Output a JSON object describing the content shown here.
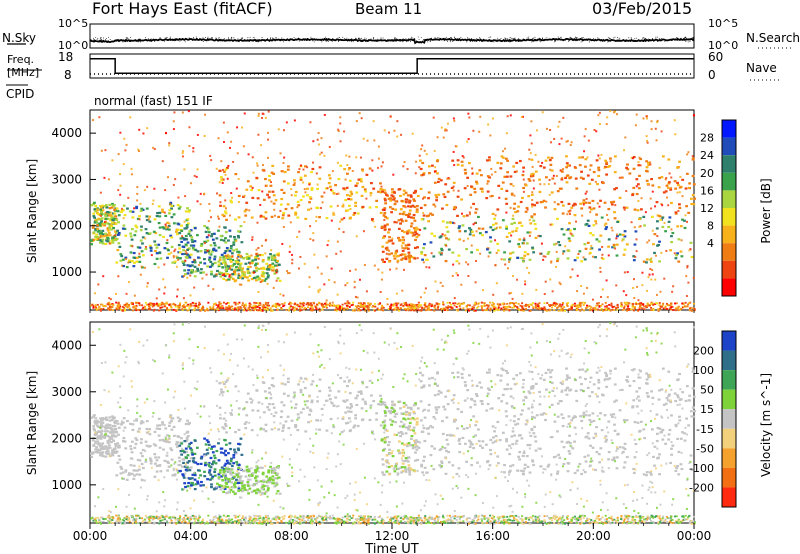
{
  "header": {
    "station": "Fort Hays East (fitACF)",
    "beam": "Beam 11",
    "date": "03/Feb/2015"
  },
  "noise_panel": {
    "left_label": "N.Sky",
    "right_label": "N.Search",
    "ticks": [
      "10^5",
      "10^0"
    ],
    "right_ticks": [
      "10^5",
      "10^0"
    ]
  },
  "freq_panel": {
    "left_label_1": "Freq.",
    "left_label_2": "[MHz]",
    "left_ticks": [
      "18",
      "8"
    ],
    "right_label": "Nave",
    "right_ticks": [
      "60",
      "0"
    ],
    "cpid_label": "CPID",
    "mode_text": "normal (fast) 151 IF"
  },
  "power_panel": {
    "ylabel": "Slant Range [km]",
    "yticks": [
      "4000",
      "3000",
      "2000",
      "1000"
    ],
    "colorbar_label": "Power [dB]",
    "colorbar_ticks": [
      "28",
      "24",
      "20",
      "16",
      "12",
      "8",
      "4"
    ],
    "colors": [
      "#0018ff",
      "#1f4cb8",
      "#2f7f6d",
      "#39a24b",
      "#a9d640",
      "#f2e11f",
      "#f7b21b",
      "#f07d14",
      "#ee4412",
      "#ff0000"
    ]
  },
  "velocity_panel": {
    "ylabel": "Slant Range [km]",
    "yticks": [
      "4000",
      "3000",
      "2000",
      "1000"
    ],
    "colorbar_label": "Velocity [m s^-1]",
    "colorbar_ticks": [
      "200",
      "100",
      "50",
      "15",
      "-15",
      "-50",
      "-100",
      "-200"
    ],
    "colors": [
      "#1d43c9",
      "#2f6f8a",
      "#3fa556",
      "#7ed33a",
      "#c4c4c4",
      "#f3d07b",
      "#f4a12e",
      "#f26f14",
      "#ff2a10"
    ]
  },
  "xaxis": {
    "ticks": [
      "00:00",
      "04:00",
      "08:00",
      "12:00",
      "16:00",
      "20:00",
      "00:00"
    ],
    "label": "Time UT"
  },
  "chart_data": {
    "type": "heatmap",
    "title": "Fort Hays East (fitACF)  Beam 11  03/Feb/2015",
    "xlabel": "Time UT",
    "ylabel": "Slant Range [km]",
    "xlim_hours": [
      0,
      24
    ],
    "ylim_km": [
      180,
      4500
    ],
    "power_colorbar_db": [
      0,
      32
    ],
    "velocity_colorbar_ms": [
      -250,
      250
    ],
    "frequency_mhz": [
      {
        "start": "00:00",
        "end": "01:00",
        "value": 16
      },
      {
        "start": "01:00",
        "end": "13:00",
        "value": 10
      },
      {
        "start": "13:00",
        "end": "24:00",
        "value": 16
      }
    ],
    "nave": 10,
    "noise_level": "near 10^1 with small fluctuations",
    "echo_regions": [
      {
        "time": "00:00-01:00",
        "range_km": "1600-2500",
        "power_db": "8-24",
        "velocity_ms": "-15 to 15"
      },
      {
        "time": "01:00-04:00",
        "range_km": "1100-2500",
        "power_db": "12-28",
        "velocity_ms": "-15 to 15"
      },
      {
        "time": "03:30-06:00",
        "range_km": "900-2000",
        "power_db": "16-28",
        "velocity_ms": "100 to 250"
      },
      {
        "time": "05:00-07:30",
        "range_km": "800-1400",
        "power_db": "8-24",
        "velocity_ms": "15 to 50"
      },
      {
        "time": "05:00-11:30",
        "range_km": "2100-3300",
        "power_db": "4-16",
        "velocity_ms": "-15 to 15"
      },
      {
        "time": "11:30-13:00",
        "range_km": "1200-2800",
        "power_db": "4-12",
        "velocity_ms": "-50 to 50"
      },
      {
        "time": "13:00-24:00",
        "range_km": "1200-2200",
        "power_db": "8-28",
        "velocity_ms": "-15 to 15"
      },
      {
        "time": "13:00-24:00",
        "range_km": "2200-3500",
        "power_db": "4-12",
        "velocity_ms": "-15 to 15"
      }
    ]
  }
}
